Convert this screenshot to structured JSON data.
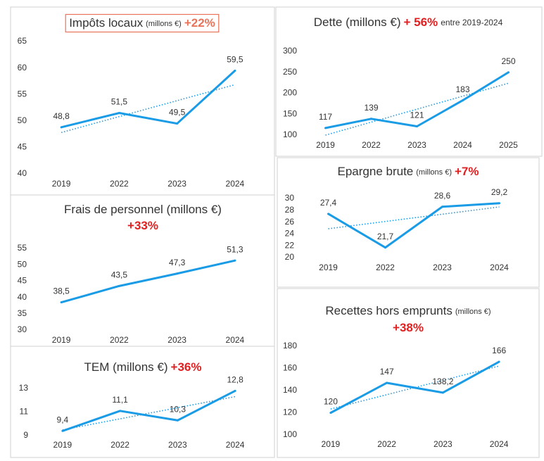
{
  "chart_data": [
    {
      "type": "line",
      "title": "Impôts locaux",
      "unit": "(millons €)",
      "change": "+22%",
      "change_color": "#e8735a",
      "title_boxed": true,
      "categories": [
        "2019",
        "2022",
        "2023",
        "2024"
      ],
      "values": [
        48.8,
        51.5,
        49.5,
        59.5
      ],
      "value_labels": [
        "48,8",
        "51,5",
        "49,5",
        "59,5"
      ],
      "color": "#1a9be6",
      "trendline": true,
      "ylim": [
        40,
        65
      ],
      "yticks": [
        40,
        45,
        50,
        55,
        60,
        65
      ]
    },
    {
      "type": "line",
      "title": "Dette (millons €)",
      "change": "+ 56%",
      "note": "entre 2019-2024",
      "change_color": "#e02020",
      "categories": [
        "2019",
        "2022",
        "2023",
        "2024",
        "2025"
      ],
      "values": [
        117,
        139,
        121,
        183,
        250
      ],
      "color": "#1a9be6",
      "trendline": true,
      "ylim": [
        100,
        300
      ],
      "yticks": [
        100,
        150,
        200,
        250,
        300
      ]
    },
    {
      "type": "line",
      "title": "Frais de personnel (millons €)",
      "change": "+33%",
      "change_color": "#e02020",
      "categories": [
        "2019",
        "2022",
        "2023",
        "2024"
      ],
      "values": [
        38.5,
        43.5,
        47.3,
        51.3
      ],
      "value_labels": [
        "38,5",
        "43,5",
        "47,3",
        "51,3"
      ],
      "color": "#1a9be6",
      "trendline": false,
      "ylim": [
        30,
        55
      ],
      "yticks": [
        30,
        35,
        40,
        45,
        50,
        55
      ]
    },
    {
      "type": "line",
      "title": "Epargne brute",
      "unit": "(millons €)",
      "change": "+7%",
      "change_color": "#e02020",
      "categories": [
        "2019",
        "2022",
        "2023",
        "2024"
      ],
      "values": [
        27.4,
        21.7,
        28.6,
        29.2
      ],
      "value_labels": [
        "27,4",
        "21,7",
        "28,6",
        "29,2"
      ],
      "color": "#1a9be6",
      "trendline": true,
      "ylim": [
        20,
        30
      ],
      "yticks": [
        20,
        22,
        24,
        26,
        28,
        30
      ]
    },
    {
      "type": "line",
      "title": "TEM (millons €)",
      "change": "+36%",
      "change_color": "#e02020",
      "categories": [
        "2019",
        "2022",
        "2023",
        "2024"
      ],
      "values": [
        9.4,
        11.1,
        10.3,
        12.8
      ],
      "value_labels": [
        "9,4",
        "11,1",
        "10,3",
        "12,8"
      ],
      "color": "#1a9be6",
      "trendline": true,
      "ylim": [
        9,
        13
      ],
      "yticks": [
        9,
        11,
        13
      ]
    },
    {
      "type": "line",
      "title": "Recettes hors emprunts",
      "unit": "(millons €)",
      "change": "+38%",
      "change_color": "#e02020",
      "categories": [
        "2019",
        "2022",
        "2023",
        "2024"
      ],
      "values": [
        120,
        147,
        138.2,
        166
      ],
      "value_labels": [
        "120",
        "147",
        "138,2",
        "166"
      ],
      "color": "#1a9be6",
      "trendline": true,
      "ylim": [
        100,
        180
      ],
      "yticks": [
        100,
        120,
        140,
        160,
        180
      ]
    }
  ]
}
